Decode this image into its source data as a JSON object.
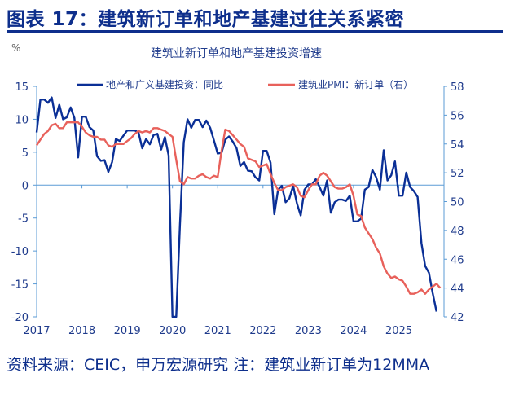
{
  "title": "图表 17：建筑新订单和地产基建过往关系紧密",
  "footer": "资料来源：CEIC，申万宏源研究 注：建筑业新订单为12MMA",
  "chart_data": {
    "type": "line",
    "title": "建筑业新订单和地产基建投资增速",
    "ylabel_left": "%",
    "x_start": "2017-01",
    "x_frequency": "monthly",
    "x_tick_labels": [
      "2017",
      "2018",
      "2019",
      "2020",
      "2021",
      "2022",
      "2023",
      "2024",
      "2025"
    ],
    "y_left": {
      "range": [
        -20,
        15
      ],
      "ticks": [
        15,
        10,
        5,
        0,
        -5,
        -10,
        -15,
        -20
      ]
    },
    "y_right": {
      "range": [
        42,
        58
      ],
      "ticks": [
        58,
        56,
        54,
        52,
        50,
        48,
        46,
        44,
        42
      ]
    },
    "grid": false,
    "legend_placement": "top",
    "colors": {
      "blue": "#0a2f96",
      "red": "#e8615b",
      "axis": "#5b9bd5",
      "text": "#1f3b8c"
    },
    "series": [
      {
        "name": "地产和广义基建投资：同比",
        "axis": "left",
        "color": "#0a2f96",
        "values": [
          8,
          13,
          13,
          12.5,
          13.3,
          10.2,
          12.2,
          10,
          10.3,
          11.8,
          10.2,
          4.2,
          10.4,
          10.4,
          8.8,
          8.3,
          4.4,
          3.7,
          3.8,
          2,
          3.5,
          7,
          6.7,
          7.5,
          8.3,
          8.3,
          8.3,
          8,
          5.6,
          7,
          6.2,
          7.6,
          7.8,
          5.4,
          7.3,
          4.5,
          -20,
          -20,
          -6,
          6.5,
          10,
          8.7,
          9.9,
          9.9,
          8.8,
          9.8,
          8.7,
          6.8,
          4.8,
          4.9,
          6.9,
          7.4,
          6.6,
          5.6,
          2.9,
          3.5,
          2.2,
          2.1,
          1.2,
          0.7,
          5.2,
          5.2,
          3.4,
          -4.4,
          -0.7,
          -0.1,
          -2.6,
          -2,
          -0.1,
          -2.8,
          -4.6,
          -0.7,
          0.1,
          0.1,
          0.9,
          -0.3,
          -1.6,
          0.7,
          -4.2,
          -2.6,
          -2.2,
          -2.2,
          -2.4,
          -1.6,
          -5.5,
          -5.5,
          -5.1,
          -0.7,
          -0.3,
          2.3,
          1.2,
          -0.7,
          5.3,
          0.7,
          1.5,
          3.6,
          -1.6,
          -1.6,
          1.9,
          -0.3,
          -0.9,
          -1.8,
          -8.8,
          -12.3,
          -13.3,
          -16.4,
          -19.2
        ]
      },
      {
        "name": "建筑业PMI：新订单（右）",
        "axis": "right",
        "color": "#e8615b",
        "values": [
          53.9,
          54.3,
          54.7,
          54.9,
          55.3,
          55.4,
          55.1,
          55.1,
          55.5,
          55.5,
          55.5,
          55.5,
          55.2,
          54.8,
          54.6,
          54.5,
          54.5,
          54.3,
          54.3,
          53.9,
          53.8,
          54.0,
          54.0,
          54.0,
          54.2,
          54.4,
          54.7,
          54.9,
          54.8,
          54.9,
          54.8,
          55.1,
          55.1,
          55.0,
          54.9,
          54.7,
          54.5,
          52.9,
          51.4,
          51.2,
          51.7,
          51.6,
          51.6,
          51.8,
          51.9,
          51.7,
          51.6,
          51.8,
          51.7,
          53.5,
          55.0,
          54.9,
          54.6,
          54.3,
          54.0,
          53.8,
          53.0,
          52.9,
          52.8,
          52.4,
          52.5,
          52.6,
          51.9,
          51.3,
          50.8,
          50.8,
          51.0,
          51.1,
          51.2,
          51.0,
          50.4,
          50.3,
          50.8,
          51.2,
          51.2,
          51.8,
          52.0,
          51.8,
          51.4,
          51.0,
          50.9,
          50.9,
          51.0,
          51.2,
          50.4,
          49.1,
          49.0,
          48.2,
          47.8,
          47.4,
          46.8,
          46.4,
          45.5,
          45.0,
          44.7,
          44.8,
          44.6,
          44.5,
          44.1,
          43.6,
          43.6,
          43.7,
          43.9,
          43.6,
          43.9,
          44.1,
          44.3,
          44.0
        ]
      }
    ]
  }
}
